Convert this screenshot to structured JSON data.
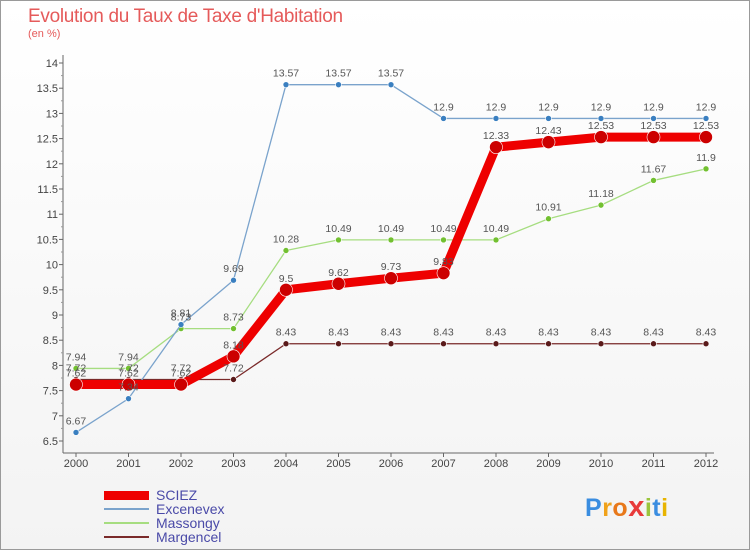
{
  "title": "Evolution du Taux de Taxe d'Habitation",
  "unit_label": "(en %)",
  "brand": {
    "letters": [
      "P",
      "r",
      "o",
      "x",
      "i",
      "t",
      "i"
    ],
    "colors": [
      "#3a8de0",
      "#f0a21b",
      "#e8781a",
      "#e83a3a",
      "#9bc53d",
      "#3a8de0",
      "#e8b400"
    ]
  },
  "chart_data": {
    "type": "line",
    "title": "Evolution du Taux de Taxe d'Habitation",
    "ylabel": "(en %)",
    "xlabel": "",
    "x": [
      2000,
      2001,
      2002,
      2003,
      2004,
      2005,
      2006,
      2007,
      2008,
      2009,
      2010,
      2011,
      2012
    ],
    "ylim": [
      6.5,
      14
    ],
    "yticks": [
      6.5,
      7,
      7.5,
      8,
      8.5,
      9,
      9.5,
      10,
      10.5,
      11,
      11.5,
      12,
      12.5,
      13,
      13.5,
      14
    ],
    "ytick_labels": [
      "6.5",
      "7",
      "7.5",
      "8",
      "8.5",
      "9",
      "9.5",
      "10",
      "10.5",
      "11",
      "11.5",
      "12",
      "12.5",
      "13",
      "13.5",
      "14"
    ],
    "grid": false,
    "legend_position": "bottom",
    "series": [
      {
        "name": "SCIEZ",
        "color": "#ee0000",
        "point_color": "#cc0000",
        "values": [
          7.62,
          7.62,
          7.62,
          8.18,
          9.5,
          9.62,
          9.73,
          9.83,
          12.33,
          12.43,
          12.53,
          12.53,
          12.53
        ],
        "labels": [
          "7.62",
          "7.62",
          "7.62",
          "8.18",
          "9.5",
          "9.62",
          "9.73",
          "9.83",
          "12.33",
          "12.43",
          "12.53",
          "12.53",
          "12.53"
        ]
      },
      {
        "name": "Excenevex",
        "color": "#7aa3cc",
        "point_color": "#3a7fc0",
        "values": [
          6.67,
          7.34,
          8.81,
          9.69,
          13.57,
          13.57,
          13.57,
          12.9,
          12.9,
          12.9,
          12.9,
          12.9,
          12.9
        ],
        "labels": [
          "6.67",
          "7.34",
          "8.81",
          "9.69",
          "13.57",
          "13.57",
          "13.57",
          "12.9",
          "12.9",
          "12.9",
          "12.9",
          "12.9",
          "12.9"
        ]
      },
      {
        "name": "Massongy",
        "color": "#a6dd80",
        "point_color": "#72c030",
        "values": [
          7.94,
          7.94,
          8.73,
          8.73,
          10.28,
          10.49,
          10.49,
          10.49,
          10.49,
          10.91,
          11.18,
          11.67,
          11.9
        ],
        "labels": [
          "7.94",
          "7.94",
          "8.73",
          "8.73",
          "10.28",
          "10.49",
          "10.49",
          "10.49",
          "10.49",
          "10.91",
          "11.18",
          "11.67",
          "11.9"
        ]
      },
      {
        "name": "Margencel",
        "color": "#7a2a2a",
        "point_color": "#5a1a1a",
        "values": [
          7.72,
          7.72,
          7.72,
          7.72,
          8.43,
          8.43,
          8.43,
          8.43,
          8.43,
          8.43,
          8.43,
          8.43,
          8.43
        ],
        "labels": [
          "7.72",
          "7.72",
          "7.72",
          "7.72",
          "8.43",
          "8.43",
          "8.43",
          "8.43",
          "8.43",
          "8.43",
          "8.43",
          "8.43",
          "8.43"
        ]
      }
    ]
  }
}
